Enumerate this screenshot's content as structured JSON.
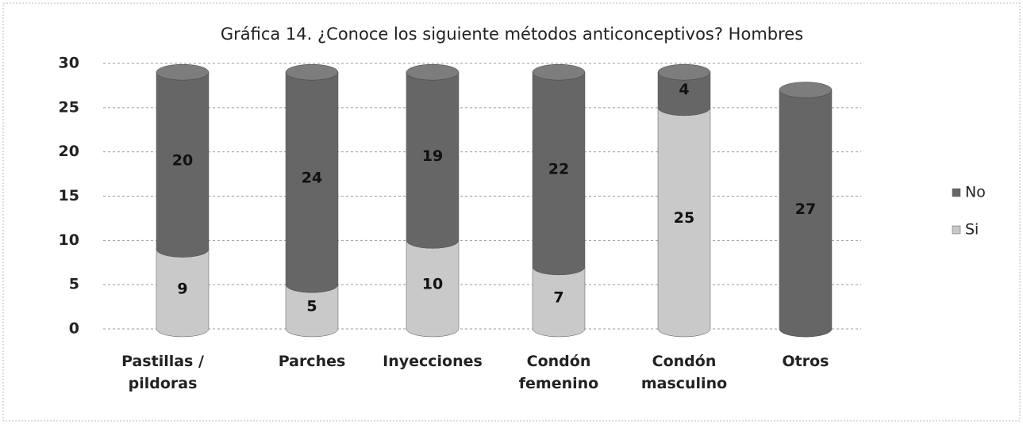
{
  "chart_data": {
    "type": "stacked-cylinder",
    "title": "Gráfica 14. ¿Conoce los siguiente métodos anticonceptivos? Hombres",
    "categories": [
      "Pastillas / pildoras",
      "Parches",
      "Inyecciones",
      "Condón femenino",
      "Condón masculino",
      "Otros"
    ],
    "series": [
      {
        "name": "Si",
        "color": "#c9c9c9",
        "values": [
          9,
          5,
          10,
          7,
          25,
          0
        ]
      },
      {
        "name": "No",
        "color": "#666666",
        "values": [
          20,
          24,
          19,
          22,
          4,
          27
        ]
      }
    ],
    "ylim": [
      0,
      30
    ],
    "yticks": [
      0,
      5,
      10,
      15,
      20,
      25,
      30
    ],
    "grid": true,
    "legend": "right"
  }
}
